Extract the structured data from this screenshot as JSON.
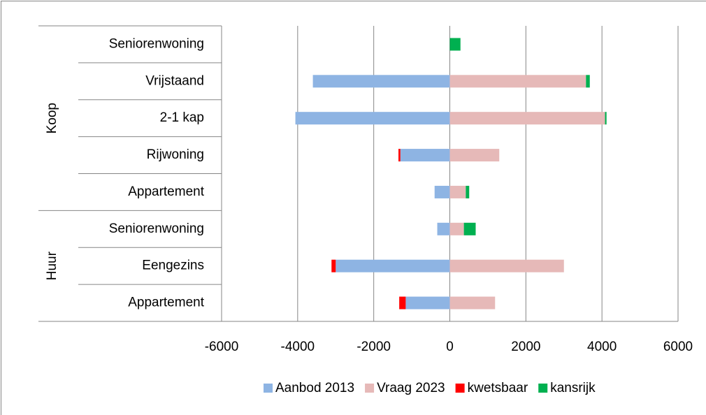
{
  "chart_data": {
    "type": "hbar-stacked",
    "groups": [
      {
        "label": "Koop",
        "categories": [
          "Seniorenwoning",
          "Vrijstaand",
          "2-1 kap",
          "Rijwoning",
          "Appartement"
        ]
      },
      {
        "label": "Huur",
        "categories": [
          "Seniorenwoning",
          "Eengezins",
          "Appartement"
        ]
      }
    ],
    "series": [
      {
        "name": "Aanbod 2013",
        "color": "#8eb4e3",
        "values": [
          0,
          -3600,
          -4060,
          -1300,
          -400,
          -330,
          -3000,
          -1160
        ]
      },
      {
        "name": "Vraag 2023",
        "color": "#e6b9b8",
        "values": [
          0,
          3580,
          4080,
          1300,
          420,
          370,
          3000,
          1190
        ]
      },
      {
        "name": "kwetsbaar",
        "color": "#ff0000",
        "values": [
          0,
          0,
          0,
          -50,
          0,
          0,
          -110,
          -170
        ]
      },
      {
        "name": "kansrijk",
        "color": "#00b050",
        "values": [
          280,
          100,
          40,
          0,
          90,
          310,
          0,
          0
        ]
      }
    ],
    "xlim": [
      -6000,
      6000
    ],
    "xticks": [
      -6000,
      -4000,
      -2000,
      0,
      2000,
      4000,
      6000
    ],
    "grid": true,
    "legend": "bottom"
  }
}
